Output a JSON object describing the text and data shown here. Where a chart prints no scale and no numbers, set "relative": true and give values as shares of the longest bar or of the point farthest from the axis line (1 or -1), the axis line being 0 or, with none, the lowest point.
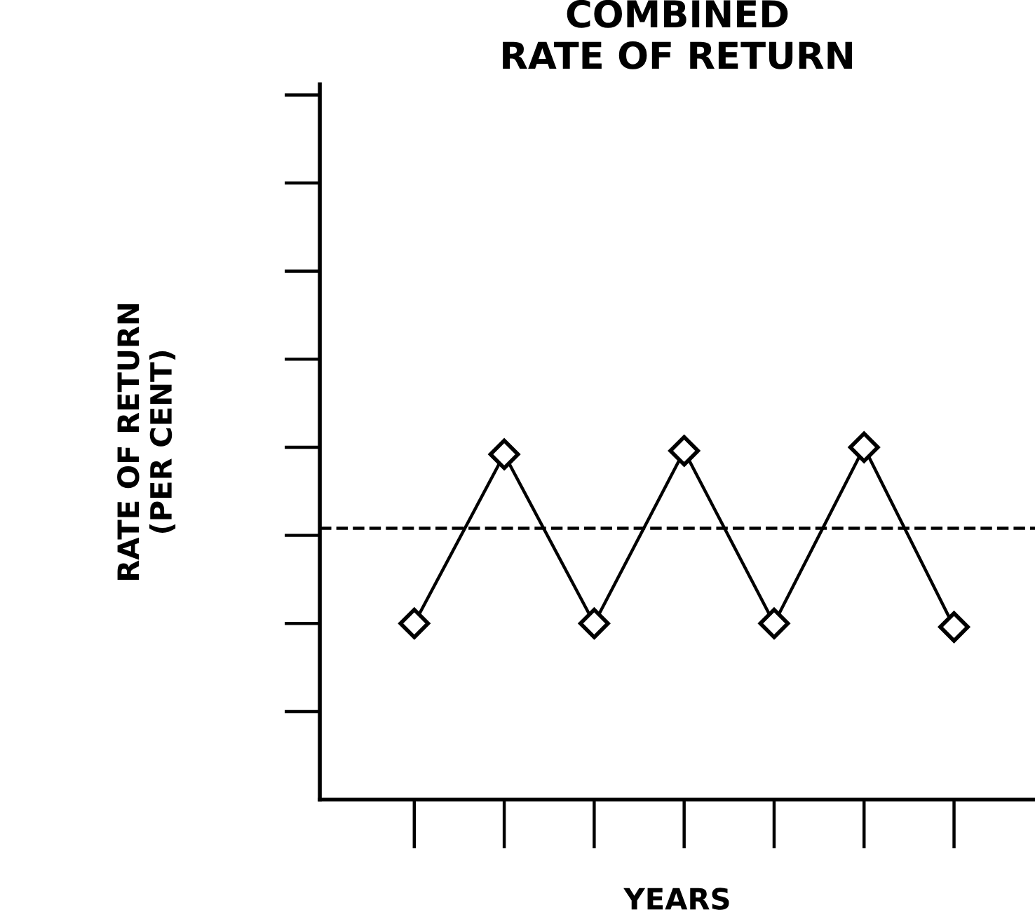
{
  "chart_data": {
    "type": "line",
    "title": "COMBINED\nRATE OF RETURN",
    "ylabel": "RATE OF RETURN\n(PER CENT)",
    "xlabel": "YEARS",
    "categories": [
      null,
      null,
      null,
      null,
      null,
      null,
      null
    ],
    "relative": true,
    "series": [
      {
        "color": "#000000",
        "values": [
          0.5,
          0.98,
          0.5,
          0.99,
          0.5,
          1.0,
          0.49
        ]
      }
    ],
    "marker": "diamond",
    "line_style": "solid",
    "grid": false,
    "legend": false,
    "tick_labels": false,
    "ref_lines": [
      {
        "axis": "y",
        "value": 0.77,
        "label": null,
        "color": "#000000",
        "line_style": "dashed"
      }
    ]
  }
}
